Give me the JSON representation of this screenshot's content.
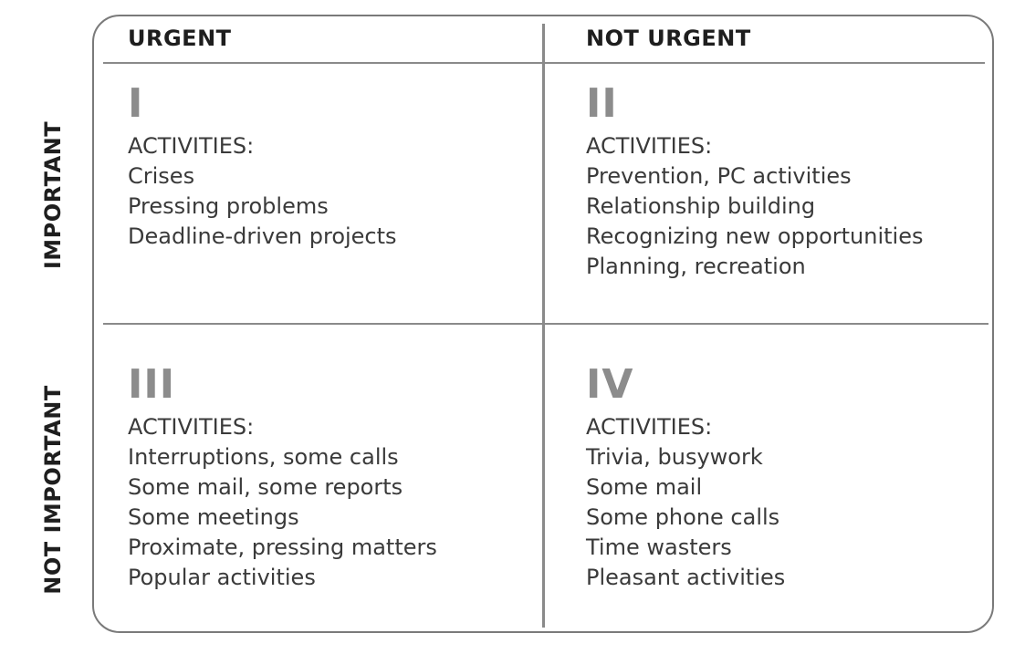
{
  "columns": {
    "urgent": "URGENT",
    "not_urgent": "NOT URGENT"
  },
  "rows": {
    "important": "IMPORTANT",
    "not_important": "NOT IMPORTANT"
  },
  "quadrants": [
    {
      "numeral": "I",
      "title": "ACTIVITIES:",
      "items": [
        "Crises",
        "Pressing problems",
        "Deadline-driven projects"
      ]
    },
    {
      "numeral": "II",
      "title": "ACTIVITIES:",
      "items": [
        "Prevention, PC activities",
        "Relationship building",
        "Recognizing new opportunities",
        "Planning, recreation"
      ]
    },
    {
      "numeral": "III",
      "title": "ACTIVITIES:",
      "items": [
        "Interruptions, some calls",
        "Some mail, some reports",
        "Some meetings",
        "Proximate, pressing matters",
        "Popular activities"
      ]
    },
    {
      "numeral": "IV",
      "title": "ACTIVITIES:",
      "items": [
        "Trivia, busywork",
        "Some mail",
        "Some phone calls",
        "Time wasters",
        "Pleasant activities"
      ]
    }
  ],
  "colors": {
    "border": "#7a7a7a",
    "numeral": "#8c8c8c",
    "heading": "#1e1e1e",
    "text": "#3a3a3a"
  }
}
